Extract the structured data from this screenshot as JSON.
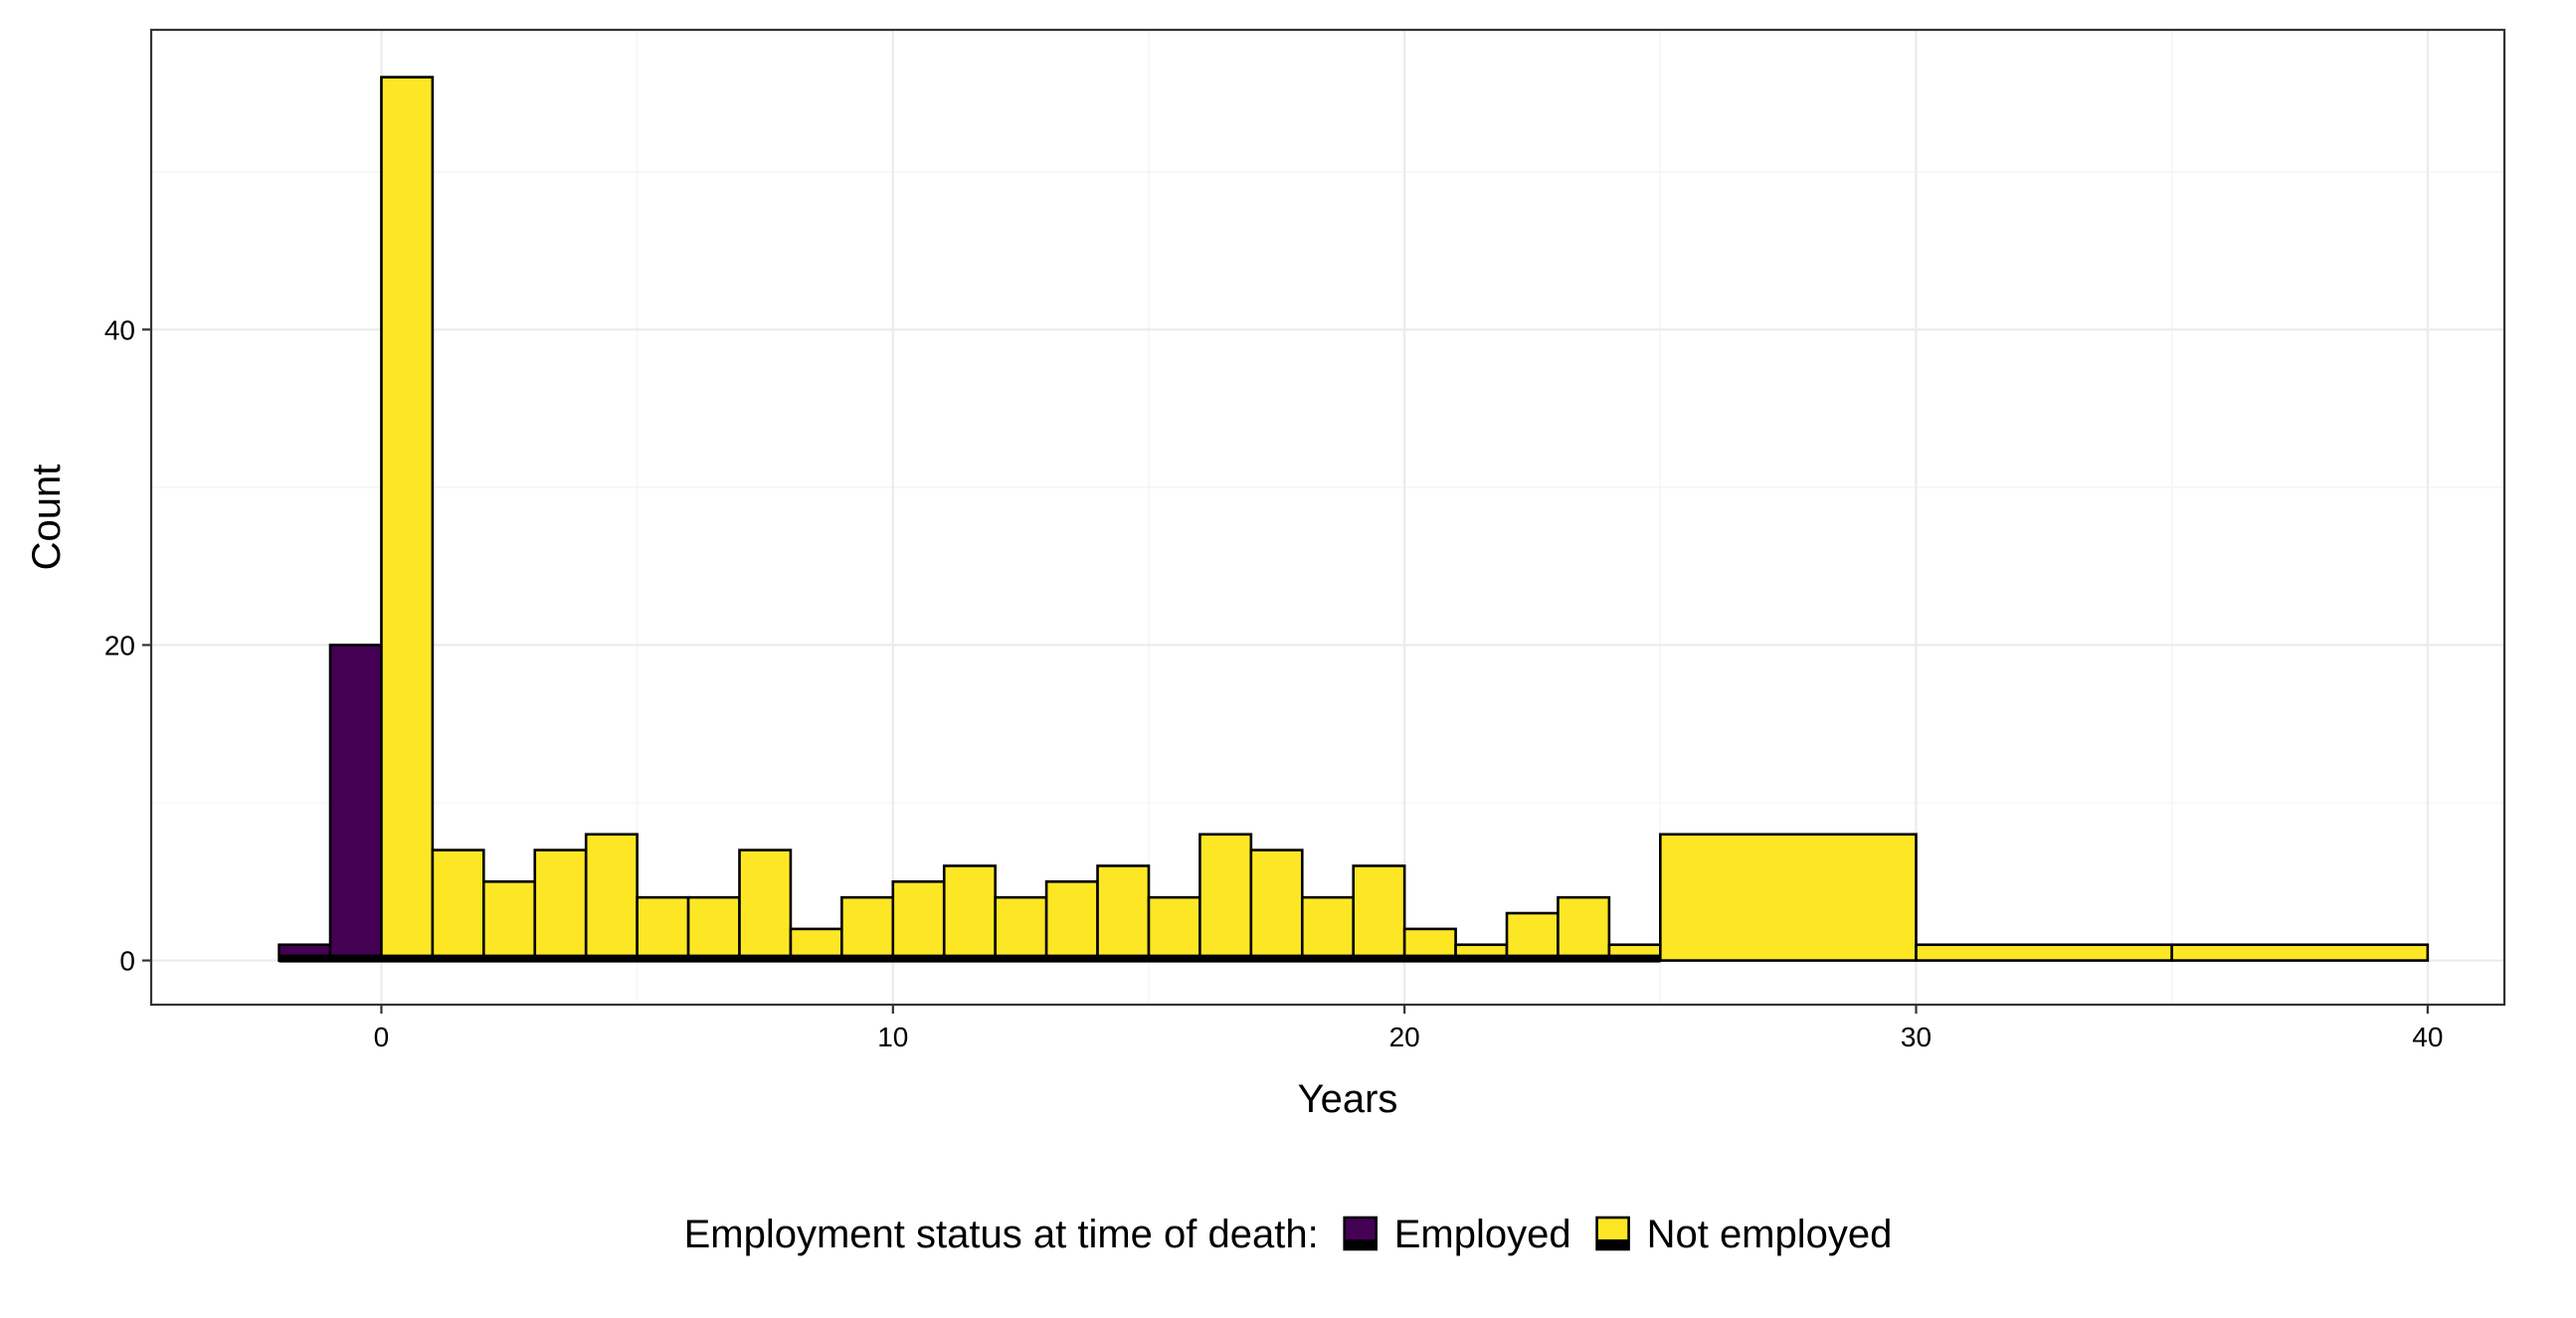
{
  "chart_data": {
    "type": "bar",
    "subtype": "stacked-histogram",
    "xlabel": "Years",
    "ylabel": "Count",
    "xlim": [
      -4.5,
      41.5
    ],
    "ylim": [
      -2.8,
      59
    ],
    "x_ticks": [
      0,
      10,
      20,
      30,
      40
    ],
    "y_ticks": [
      0,
      20,
      40
    ],
    "grid": true,
    "legend": {
      "title": "Employment status at time of death:",
      "position": "bottom",
      "entries": [
        "Employed",
        "Not employed"
      ]
    },
    "colors": {
      "Employed": "#440154",
      "Not employed": "#FDE725",
      "outline": "#000000",
      "grid": "#ebebeb"
    },
    "series": [
      {
        "name": "Employed",
        "bins": [
          {
            "x0": -2,
            "x1": -1,
            "value": 1
          },
          {
            "x0": -1,
            "x1": 0,
            "value": 20
          }
        ]
      },
      {
        "name": "Not employed",
        "bins": [
          {
            "x0": 0,
            "x1": 1,
            "value": 56
          },
          {
            "x0": 1,
            "x1": 2,
            "value": 7
          },
          {
            "x0": 2,
            "x1": 3,
            "value": 5
          },
          {
            "x0": 3,
            "x1": 4,
            "value": 7
          },
          {
            "x0": 4,
            "x1": 5,
            "value": 8
          },
          {
            "x0": 5,
            "x1": 6,
            "value": 4
          },
          {
            "x0": 6,
            "x1": 7,
            "value": 4
          },
          {
            "x0": 7,
            "x1": 8,
            "value": 7
          },
          {
            "x0": 8,
            "x1": 9,
            "value": 2
          },
          {
            "x0": 9,
            "x1": 10,
            "value": 4
          },
          {
            "x0": 10,
            "x1": 11,
            "value": 5
          },
          {
            "x0": 11,
            "x1": 12,
            "value": 6
          },
          {
            "x0": 12,
            "x1": 13,
            "value": 4
          },
          {
            "x0": 13,
            "x1": 14,
            "value": 5
          },
          {
            "x0": 14,
            "x1": 15,
            "value": 6
          },
          {
            "x0": 15,
            "x1": 16,
            "value": 4
          },
          {
            "x0": 16,
            "x1": 17,
            "value": 8
          },
          {
            "x0": 17,
            "x1": 18,
            "value": 7
          },
          {
            "x0": 18,
            "x1": 19,
            "value": 4
          },
          {
            "x0": 19,
            "x1": 20,
            "value": 6
          },
          {
            "x0": 20,
            "x1": 21,
            "value": 2
          },
          {
            "x0": 21,
            "x1": 22,
            "value": 1
          },
          {
            "x0": 22,
            "x1": 23,
            "value": 3
          },
          {
            "x0": 23,
            "x1": 24,
            "value": 4
          },
          {
            "x0": 24,
            "x1": 25,
            "value": 1
          },
          {
            "x0": 25,
            "x1": 30,
            "value": 8
          },
          {
            "x0": 30,
            "x1": 35,
            "value": 1
          },
          {
            "x0": 35,
            "x1": 40,
            "value": 1
          }
        ]
      }
    ],
    "zero_count_bins": [
      {
        "series": "Employed",
        "x0": 0,
        "x1": 25
      },
      {
        "series": "Not employed",
        "x0": -2,
        "x1": 0
      }
    ]
  }
}
